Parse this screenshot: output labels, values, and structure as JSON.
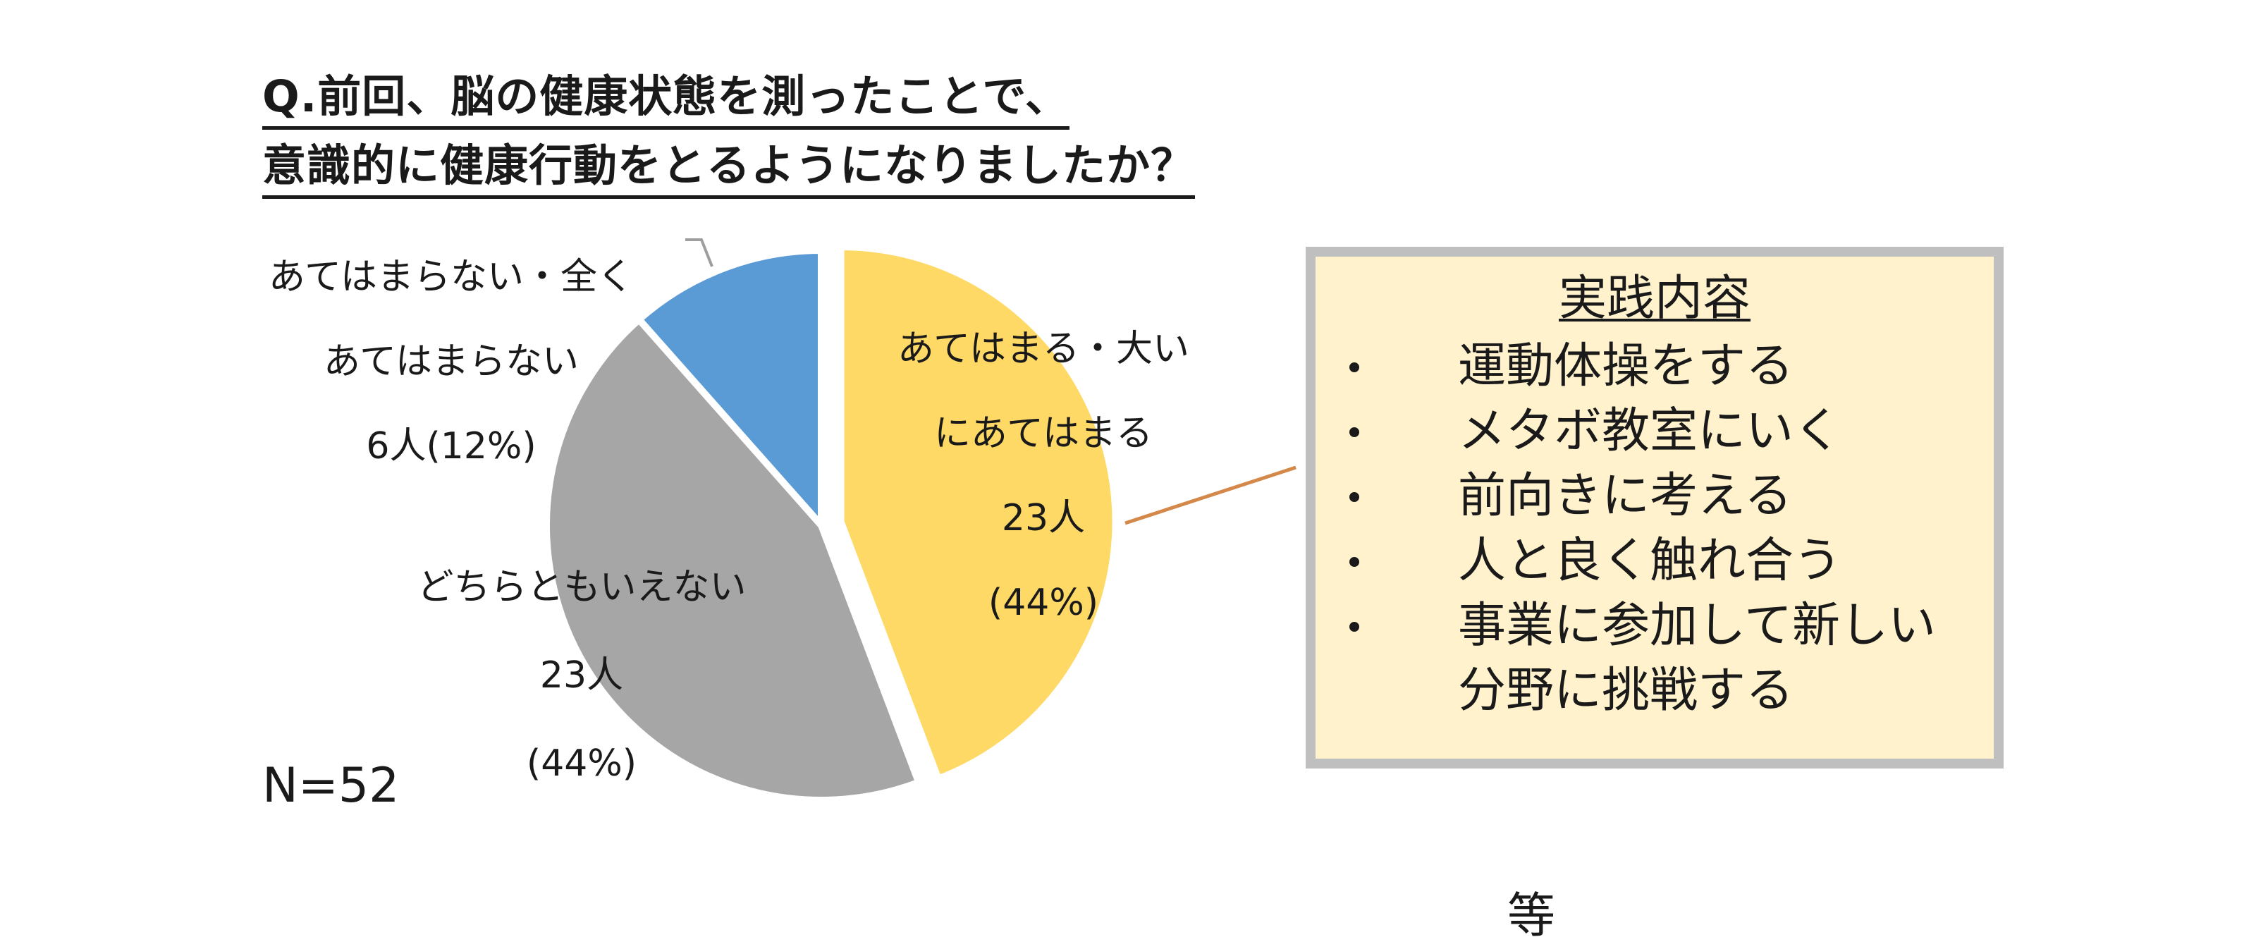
{
  "title": {
    "line1": "Q.前回、脳の健康状態を測ったことで、",
    "line2": "意識的に健康行動をとるようになりましたか？"
  },
  "n_label": "N=52",
  "chart_data": {
    "type": "pie",
    "title": "Q.前回、脳の健康状態を測ったことで、意識的に健康行動をとるようになりましたか？",
    "total": 52,
    "slices": [
      {
        "label_lines": [
          "あてはまる・大い",
          "にあてはまる",
          "23人",
          "(44%)"
        ],
        "count": 23,
        "percent": 44,
        "color": "#ffd966",
        "exploded": true
      },
      {
        "label_lines": [
          "どちらともいえない",
          "23人",
          "(44%)"
        ],
        "count": 23,
        "percent": 44,
        "color": "#a6a6a6",
        "exploded": false
      },
      {
        "label_lines": [
          "あてはまらない・全く",
          "あてはまらない",
          "6人(12%)"
        ],
        "count": 6,
        "percent": 12,
        "color": "#5b9bd5",
        "exploded": false
      }
    ]
  },
  "practice_box": {
    "title": "実践内容",
    "items": [
      "運動体操をする",
      "メタボ教室にいく",
      "前向きに考える",
      "人と良く触れ合う",
      "事業に参加して新しい分野に挑戦する"
    ],
    "etc": "等"
  }
}
